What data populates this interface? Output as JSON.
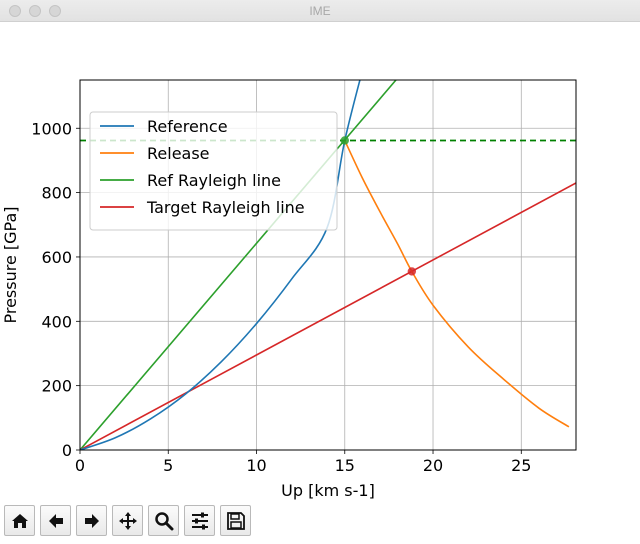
{
  "window": {
    "title": "IME"
  },
  "toolbar": {
    "buttons": [
      {
        "name": "home-button",
        "icon": "home-icon"
      },
      {
        "name": "back-button",
        "icon": "arrow-left-icon"
      },
      {
        "name": "forward-button",
        "icon": "arrow-right-icon"
      },
      {
        "name": "pan-button",
        "icon": "move-icon"
      },
      {
        "name": "zoom-button",
        "icon": "magnifier-icon"
      },
      {
        "name": "configure-subplots-button",
        "icon": "sliders-icon"
      },
      {
        "name": "save-button",
        "icon": "floppy-disk-icon"
      }
    ]
  },
  "chart_data": {
    "type": "line",
    "xlabel": "Up [km s-1]",
    "ylabel": "Pressure [GPa]",
    "xlim": [
      0,
      28.1
    ],
    "ylim": [
      0,
      1150
    ],
    "xticks": [
      0,
      5,
      10,
      15,
      20,
      25
    ],
    "yticks": [
      0,
      200,
      400,
      600,
      800,
      1000
    ],
    "grid": true,
    "legend_position": "upper left",
    "series": [
      {
        "name": "Reference",
        "color": "#1f77b4",
        "x": [
          0,
          2,
          4,
          6,
          8,
          10,
          12,
          14,
          15,
          16
        ],
        "y": [
          0,
          38,
          97,
          175,
          274,
          393,
          532,
          691,
          962,
          1180
        ]
      },
      {
        "name": "Release",
        "color": "#ff7f0e",
        "x": [
          15,
          16,
          17,
          18,
          18.8,
          20,
          22,
          24,
          26,
          27.7
        ],
        "y": [
          962,
          845,
          740,
          640,
          555,
          450,
          320,
          220,
          130,
          72
        ]
      },
      {
        "name": "Ref Rayleigh line",
        "color": "#2ca02c",
        "x": [
          0,
          17.9
        ],
        "y": [
          0,
          1150
        ]
      },
      {
        "name": "Target Rayleigh line",
        "color": "#d62728",
        "x": [
          0,
          28.1
        ],
        "y": [
          0,
          830
        ]
      }
    ],
    "hline": {
      "y": 962,
      "color": "#2ca02c",
      "style": "dashed"
    },
    "markers": [
      {
        "x": 15,
        "y": 962,
        "color": "#2ca02c"
      },
      {
        "x": 18.8,
        "y": 555,
        "color": "#d62728"
      }
    ]
  }
}
